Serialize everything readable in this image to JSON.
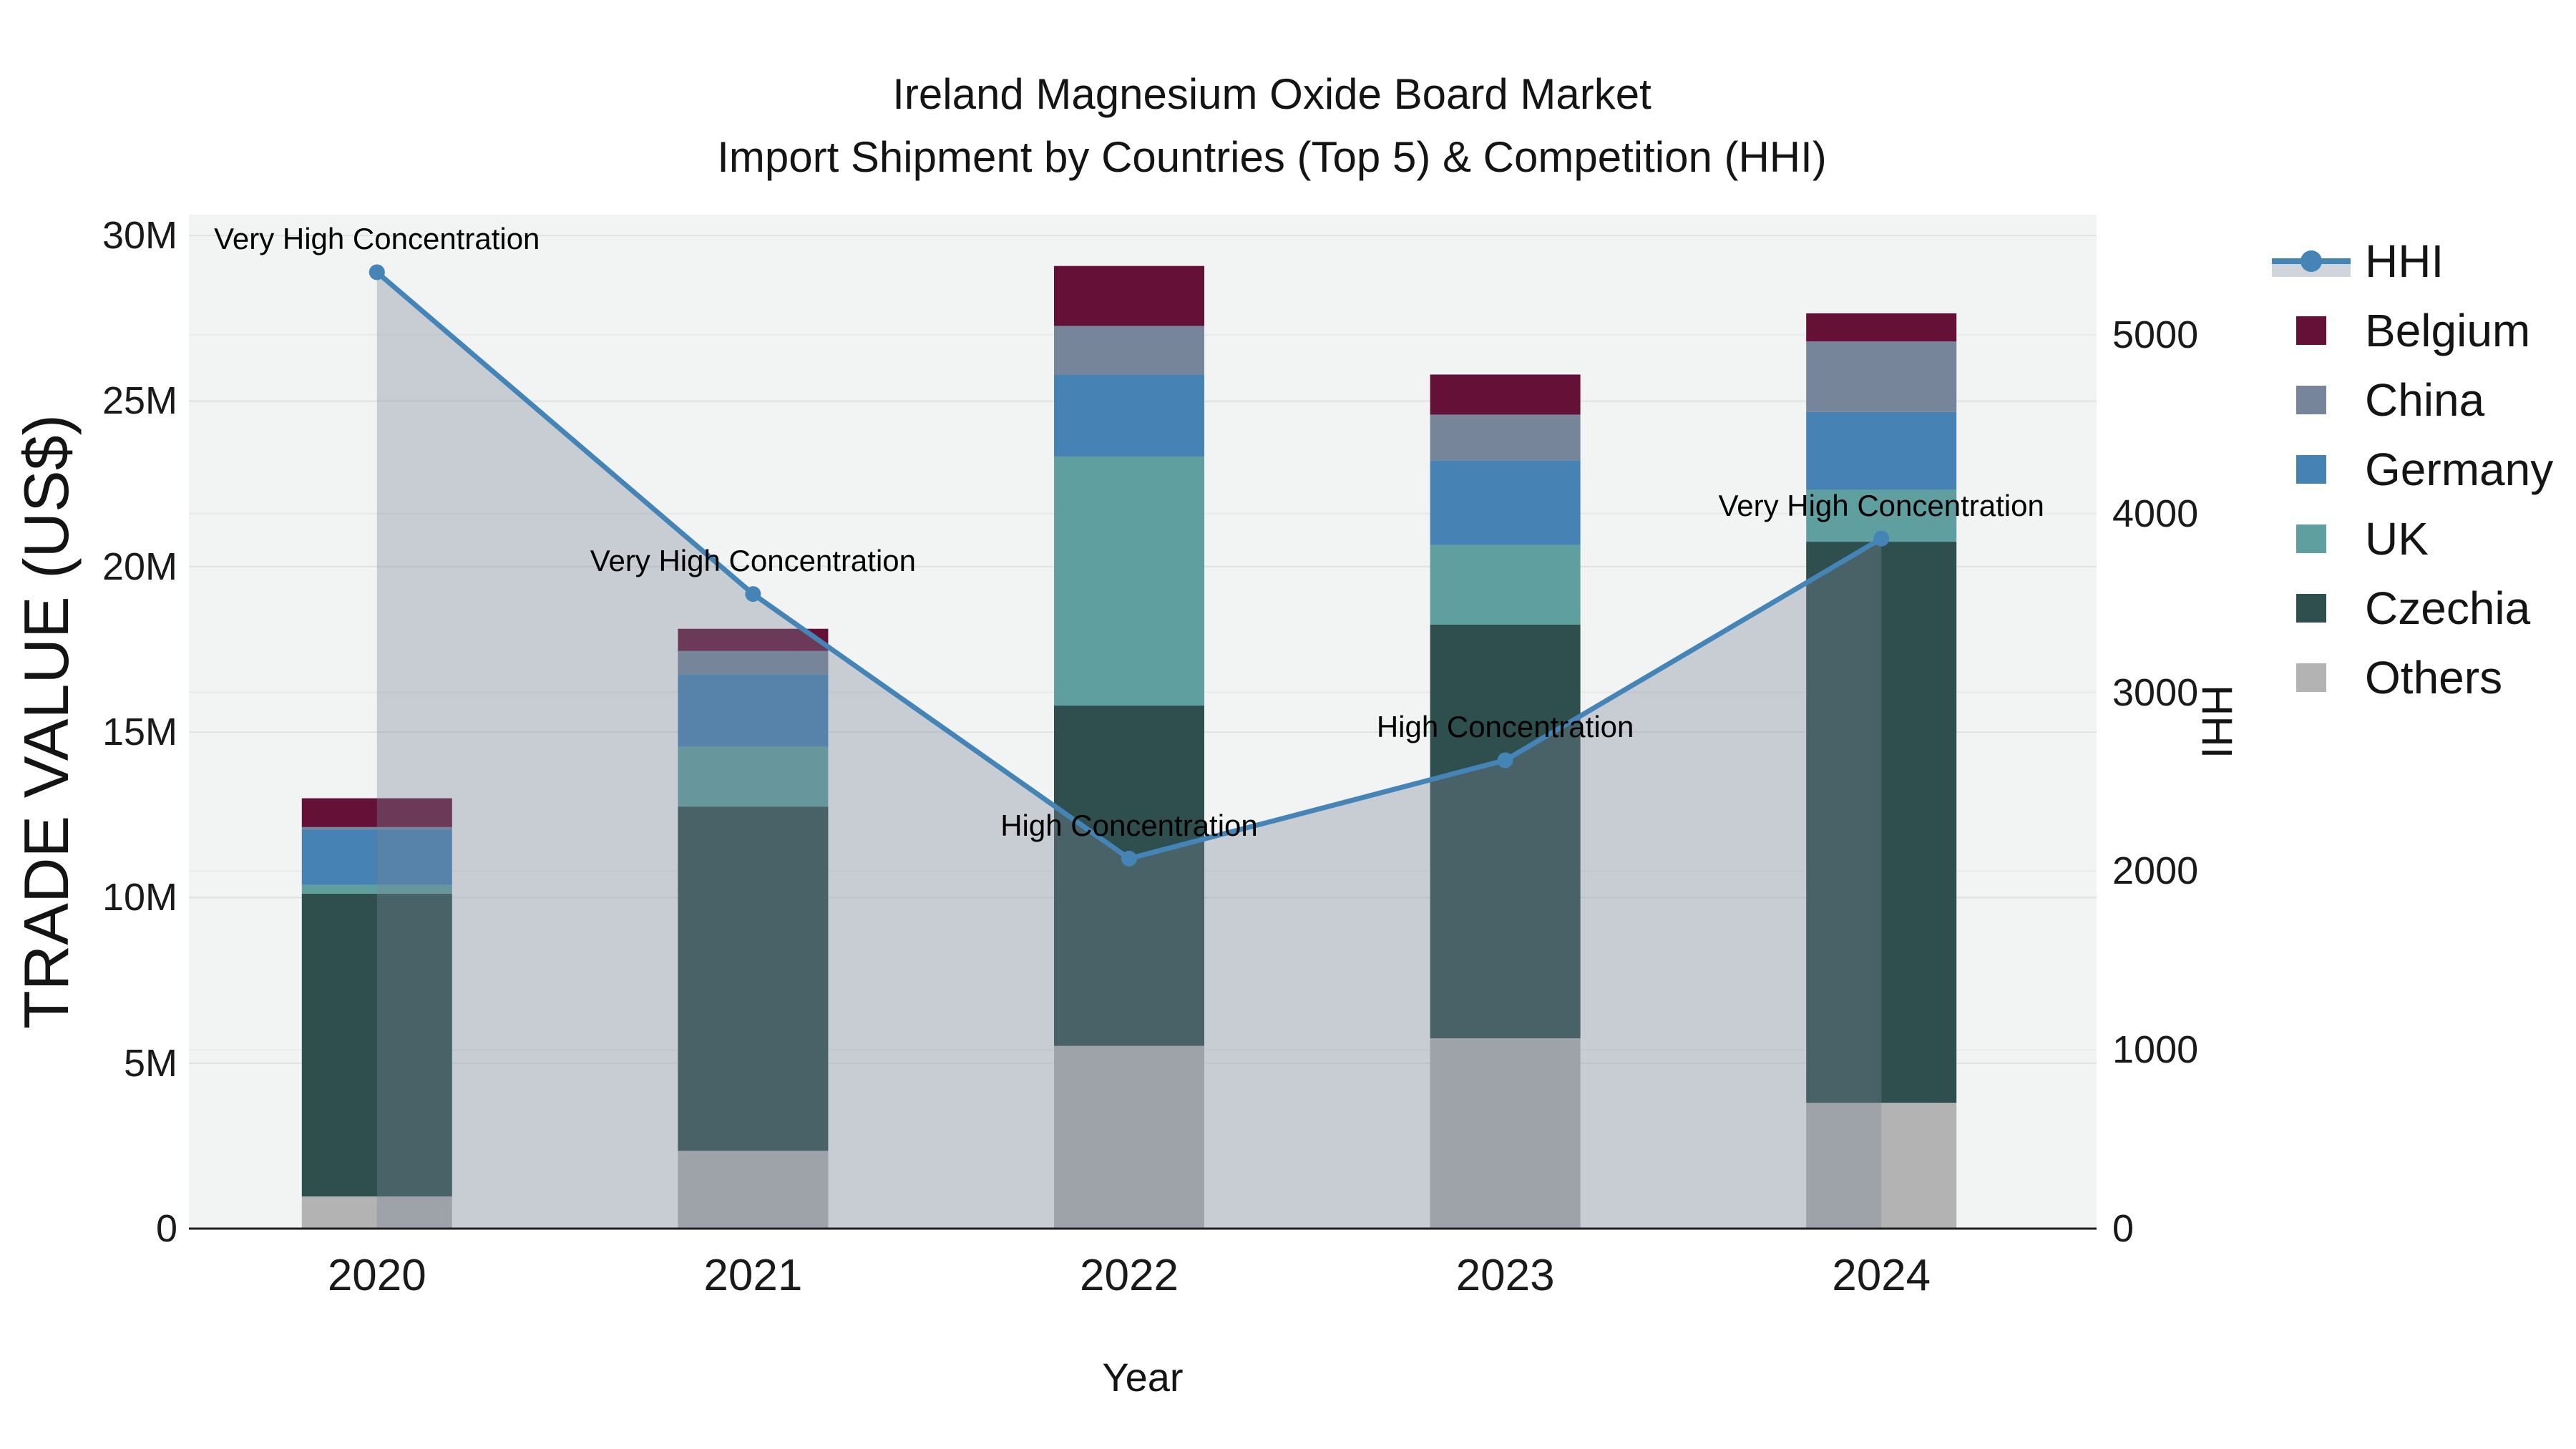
{
  "title": {
    "line1": "Ireland Magnesium Oxide Board Market",
    "line2": "Import Shipment by Countries (Top 5) & Competition (HHI)"
  },
  "axes": {
    "left_title": "TRADE VALUE (US$)",
    "right_title": "HHI",
    "x_title": "Year",
    "left_ticks": [
      {
        "label": "0",
        "value": 0
      },
      {
        "label": "5M",
        "value": 5
      },
      {
        "label": "10M",
        "value": 10
      },
      {
        "label": "15M",
        "value": 15
      },
      {
        "label": "20M",
        "value": 20
      },
      {
        "label": "25M",
        "value": 25
      },
      {
        "label": "30M",
        "value": 30
      }
    ],
    "right_ticks": [
      {
        "label": "0",
        "value": 0
      },
      {
        "label": "1000",
        "value": 1000
      },
      {
        "label": "2000",
        "value": 2000
      },
      {
        "label": "3000",
        "value": 3000
      },
      {
        "label": "4000",
        "value": 4000
      },
      {
        "label": "5000",
        "value": 5000
      }
    ]
  },
  "chart_data": {
    "type": "bar+line",
    "title": "Ireland Magnesium Oxide Board Market — Import Shipment by Countries (Top 5) & Competition (HHI)",
    "x_labels": [
      "2020",
      "2021",
      "2022",
      "2023",
      "2024"
    ],
    "bar_value_unit": "million US$",
    "bar_series": [
      {
        "name": "Belgium",
        "color": "#651137",
        "values": [
          0.87,
          0.67,
          1.81,
          1.21,
          0.85
        ]
      },
      {
        "name": "China",
        "color": "#76859a",
        "values": [
          0.07,
          0.71,
          1.47,
          1.38,
          2.13
        ]
      },
      {
        "name": "Germany",
        "color": "#4682b4",
        "values": [
          1.68,
          2.18,
          2.48,
          2.56,
          2.35
        ]
      },
      {
        "name": "UK",
        "color": "#5f9fa0",
        "values": [
          0.26,
          1.81,
          7.52,
          2.4,
          1.57
        ]
      },
      {
        "name": "Czechia",
        "color": "#2f4f4f",
        "values": [
          9.15,
          10.4,
          10.28,
          12.5,
          16.95
        ]
      },
      {
        "name": "Others",
        "color": "#b3b3b3",
        "values": [
          0.97,
          2.35,
          5.52,
          5.75,
          3.8
        ]
      }
    ],
    "bar_totals_musd": [
      13.0,
      18.1,
      29.1,
      25.8,
      27.65
    ],
    "stack_order_bottom_to_top": [
      "Others",
      "Czechia",
      "UK",
      "Germany",
      "China",
      "Belgium"
    ],
    "line_series": {
      "name": "HHI",
      "color": "#4584b6",
      "area_fill": "rgba(119,136,153,0.35)",
      "values": [
        5350,
        3550,
        2070,
        2620,
        3860
      ],
      "annotations": [
        "Very High Concentration",
        "Very High Concentration",
        "High Concentration",
        "High Concentration",
        "Very High Concentration"
      ]
    },
    "left_axis_range_musd": [
      0,
      30.63
    ],
    "right_axis_range": [
      0,
      5672
    ],
    "plot_background": "#f2f3f3",
    "grid_color_left": "#dfe2e2",
    "grid_color_right": "#e8eaea",
    "axis_line_color": "#1f1f1f",
    "legend_position": "right"
  }
}
